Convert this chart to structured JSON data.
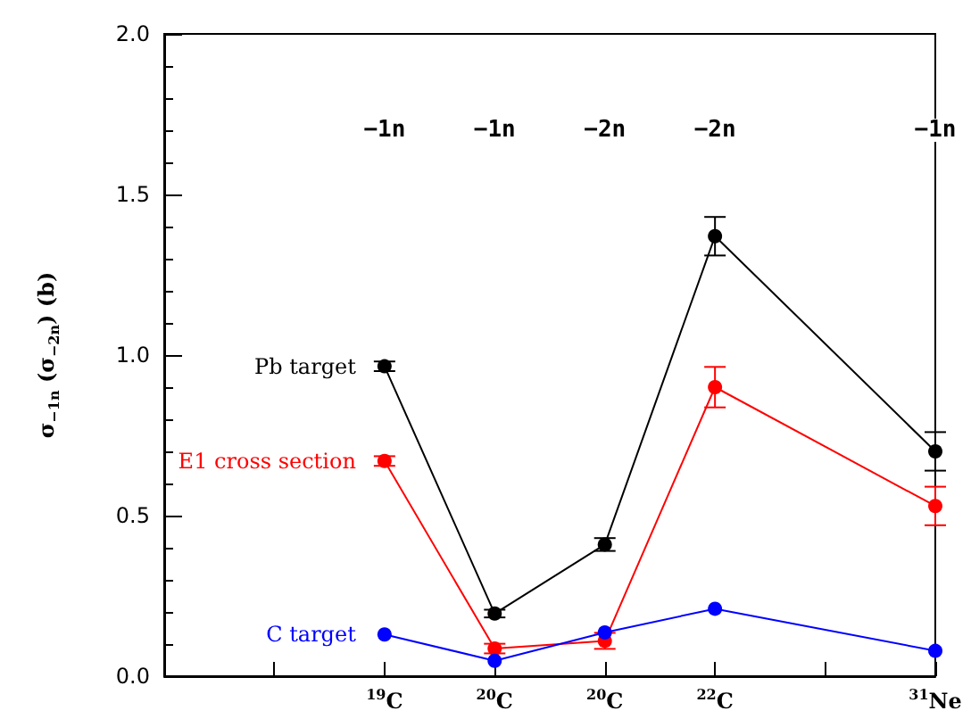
{
  "chart_data": {
    "type": "line",
    "ylabel": "σ$_{−1n}$ (σ$_{−2n}$) (b)",
    "categories": [
      null,
      null,
      "$^{19}$C",
      "$^{20}$C",
      "$^{20}$C",
      "$^{22}$C",
      null,
      "$^{31}$Ne"
    ],
    "ylim": [
      0,
      2
    ],
    "yticks": [
      {
        "value": 0,
        "label": "0.0"
      },
      {
        "value": 0.5,
        "label": "0.5"
      },
      {
        "value": 1,
        "label": "1.0"
      },
      {
        "value": 1.5,
        "label": "1.5"
      },
      {
        "value": 2,
        "label": "2.0"
      }
    ],
    "marker": "circle",
    "grid": false,
    "legend": false,
    "series": [
      {
        "name": "Pb target",
        "color": "#000000",
        "values": [
          null,
          null,
          0.965,
          0.195,
          0.41,
          1.37,
          null,
          0.7
        ],
        "errors": [
          null,
          null,
          0.015,
          0.012,
          0.02,
          0.06,
          null,
          0.06
        ]
      },
      {
        "name": "E1 cross section",
        "color": "#ff0000",
        "values": [
          null,
          null,
          0.67,
          0.086,
          0.11,
          0.9,
          null,
          0.53
        ],
        "errors": [
          null,
          null,
          0.015,
          0.015,
          0.025,
          0.063,
          null,
          0.06
        ]
      },
      {
        "name": "C target",
        "color": "#0000ff",
        "values": [
          null,
          null,
          0.13,
          0.048,
          0.136,
          0.21,
          null,
          0.079
        ]
      }
    ],
    "annotations": [
      "−1n",
      "−1n",
      "−2n",
      "−2n",
      "−1n"
    ]
  }
}
